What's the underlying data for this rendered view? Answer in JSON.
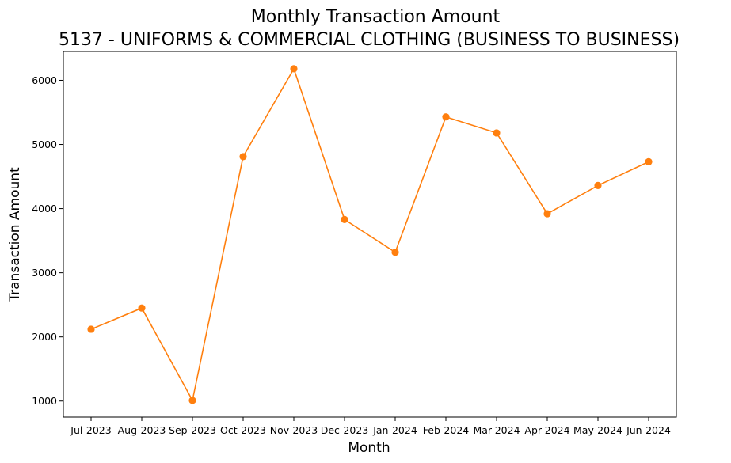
{
  "chart_data": {
    "type": "line",
    "title": "Monthly Transaction Amount",
    "subtitle": "5137 - UNIFORMS & COMMERCIAL CLOTHING (BUSINESS TO BUSINESS)",
    "xlabel": "Month",
    "ylabel": "Transaction Amount",
    "categories": [
      "Jul-2023",
      "Aug-2023",
      "Sep-2023",
      "Oct-2023",
      "Nov-2023",
      "Dec-2023",
      "Jan-2024",
      "Feb-2024",
      "Mar-2024",
      "Apr-2024",
      "May-2024",
      "Jun-2024"
    ],
    "series": [
      {
        "values": [
          2120,
          2450,
          1010,
          4810,
          6180,
          3830,
          3320,
          5430,
          5180,
          3920,
          4360,
          4730
        ],
        "color": "#ff7f0e"
      }
    ],
    "yticks": [
      1000,
      2000,
      3000,
      4000,
      5000,
      6000
    ],
    "ylim": [
      750,
      6450
    ],
    "grid": false,
    "legend": "none"
  }
}
